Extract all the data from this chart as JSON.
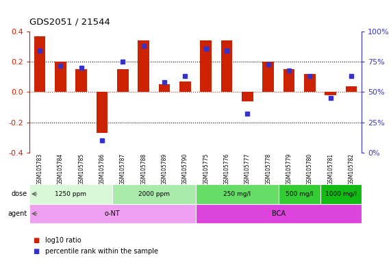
{
  "title": "GDS2051 / 21544",
  "samples": [
    "GSM105783",
    "GSM105784",
    "GSM105785",
    "GSM105786",
    "GSM105787",
    "GSM105788",
    "GSM105789",
    "GSM105790",
    "GSM105775",
    "GSM105776",
    "GSM105777",
    "GSM105778",
    "GSM105779",
    "GSM105780",
    "GSM105781",
    "GSM105782"
  ],
  "log10_ratio": [
    0.37,
    0.2,
    0.15,
    -0.27,
    0.15,
    0.34,
    0.05,
    0.07,
    0.34,
    0.34,
    -0.06,
    0.2,
    0.15,
    0.12,
    -0.02,
    0.04
  ],
  "percentile_rank": [
    0.84,
    0.72,
    0.7,
    0.1,
    0.75,
    0.88,
    0.58,
    0.63,
    0.86,
    0.84,
    0.32,
    0.73,
    0.68,
    0.63,
    0.45,
    0.63
  ],
  "ylim": [
    -0.4,
    0.4
  ],
  "yticks_left": [
    -0.4,
    -0.2,
    0.0,
    0.2,
    0.4
  ],
  "yticks_right": [
    0,
    25,
    50,
    75,
    100
  ],
  "bar_color": "#cc2200",
  "dot_color": "#3333cc",
  "bg_color": "#ffffff",
  "label_bg_color": "#c8c8c8",
  "dose_groups": [
    {
      "label": "1250 ppm",
      "start": 0,
      "end": 4,
      "color": "#d8f8d8"
    },
    {
      "label": "2000 ppm",
      "start": 4,
      "end": 8,
      "color": "#aaeaaa"
    },
    {
      "label": "250 mg/l",
      "start": 8,
      "end": 12,
      "color": "#66dd66"
    },
    {
      "label": "500 mg/l",
      "start": 12,
      "end": 14,
      "color": "#33cc33"
    },
    {
      "label": "1000 mg/l",
      "start": 14,
      "end": 16,
      "color": "#11bb11"
    }
  ],
  "agent_groups": [
    {
      "label": "o-NT",
      "start": 0,
      "end": 8,
      "color": "#f0a0f0"
    },
    {
      "label": "BCA",
      "start": 8,
      "end": 16,
      "color": "#dd44dd"
    }
  ],
  "legend_bar_label": "log10 ratio",
  "legend_dot_label": "percentile rank within the sample"
}
